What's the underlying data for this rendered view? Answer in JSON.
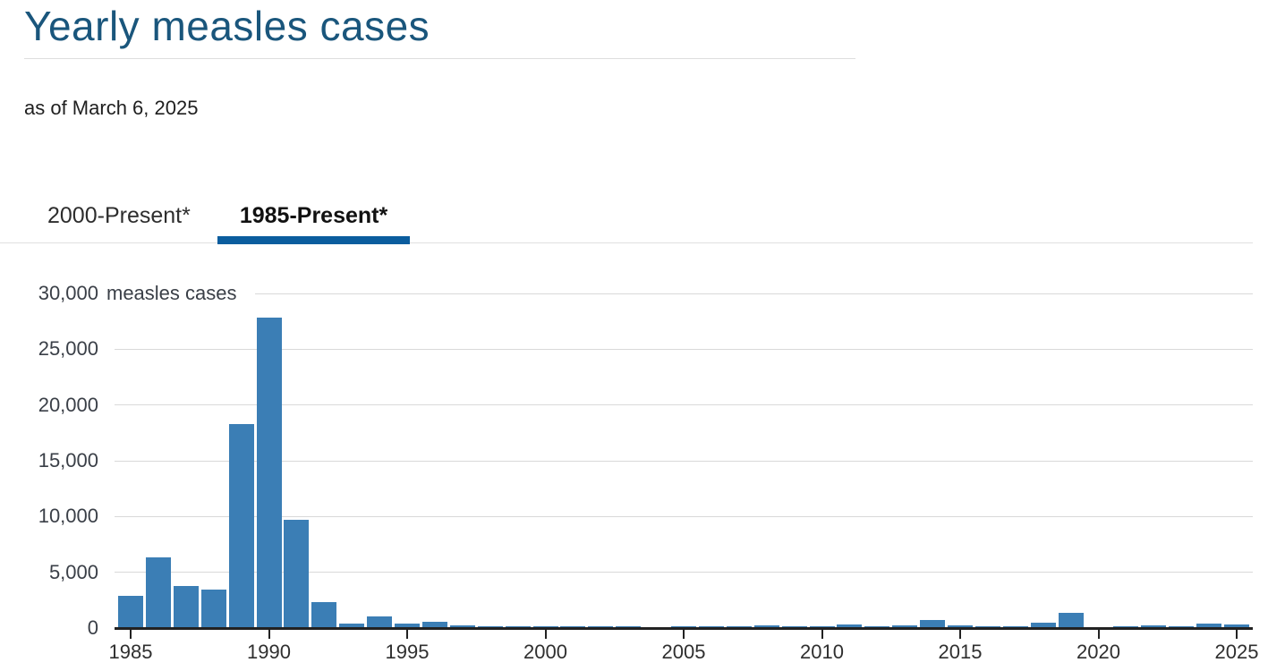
{
  "header": {
    "title": "Yearly measles cases",
    "as_of": "as of March 6, 2025"
  },
  "tabs": [
    {
      "label": "2000-Present*",
      "active": false
    },
    {
      "label": "1985-Present*",
      "active": true
    }
  ],
  "chart_data": {
    "type": "bar",
    "title": "Yearly measles cases",
    "subtitle": "as of March 6, 2025",
    "xlabel": "",
    "ylabel": "measles cases",
    "ylim": [
      0,
      30000
    ],
    "grid": true,
    "legend": "none",
    "x": [
      1985,
      1986,
      1987,
      1988,
      1989,
      1990,
      1991,
      1992,
      1993,
      1994,
      1995,
      1996,
      1997,
      1998,
      1999,
      2000,
      2001,
      2002,
      2003,
      2004,
      2005,
      2006,
      2007,
      2008,
      2009,
      2010,
      2011,
      2012,
      2013,
      2014,
      2015,
      2016,
      2017,
      2018,
      2019,
      2020,
      2021,
      2022,
      2023,
      2024,
      2025
    ],
    "values": [
      2822,
      6282,
      3655,
      3396,
      18193,
      27786,
      9643,
      2237,
      312,
      963,
      309,
      508,
      138,
      100,
      100,
      86,
      116,
      44,
      56,
      37,
      66,
      55,
      43,
      140,
      71,
      63,
      220,
      55,
      187,
      667,
      188,
      86,
      120,
      381,
      1274,
      13,
      49,
      121,
      59,
      285,
      222
    ],
    "xticks": [
      1985,
      1990,
      1995,
      2000,
      2005,
      2010,
      2015,
      2020,
      2025
    ],
    "yticks": [
      {
        "value": 0,
        "label": "0"
      },
      {
        "value": 5000,
        "label": "5,000"
      },
      {
        "value": 10000,
        "label": "10,000"
      },
      {
        "value": 15000,
        "label": "15,000"
      },
      {
        "value": 20000,
        "label": "20,000"
      },
      {
        "value": 25000,
        "label": "25,000"
      },
      {
        "value": 30000,
        "label": "30,000",
        "suffix": "measles cases"
      }
    ],
    "bar_color": "#3B7EB5",
    "axis_color": "#222222",
    "grid_color": "#d9d9d9"
  },
  "colors": {
    "title": "#1A567C",
    "tab_active_underline": "#0B5D9E"
  }
}
